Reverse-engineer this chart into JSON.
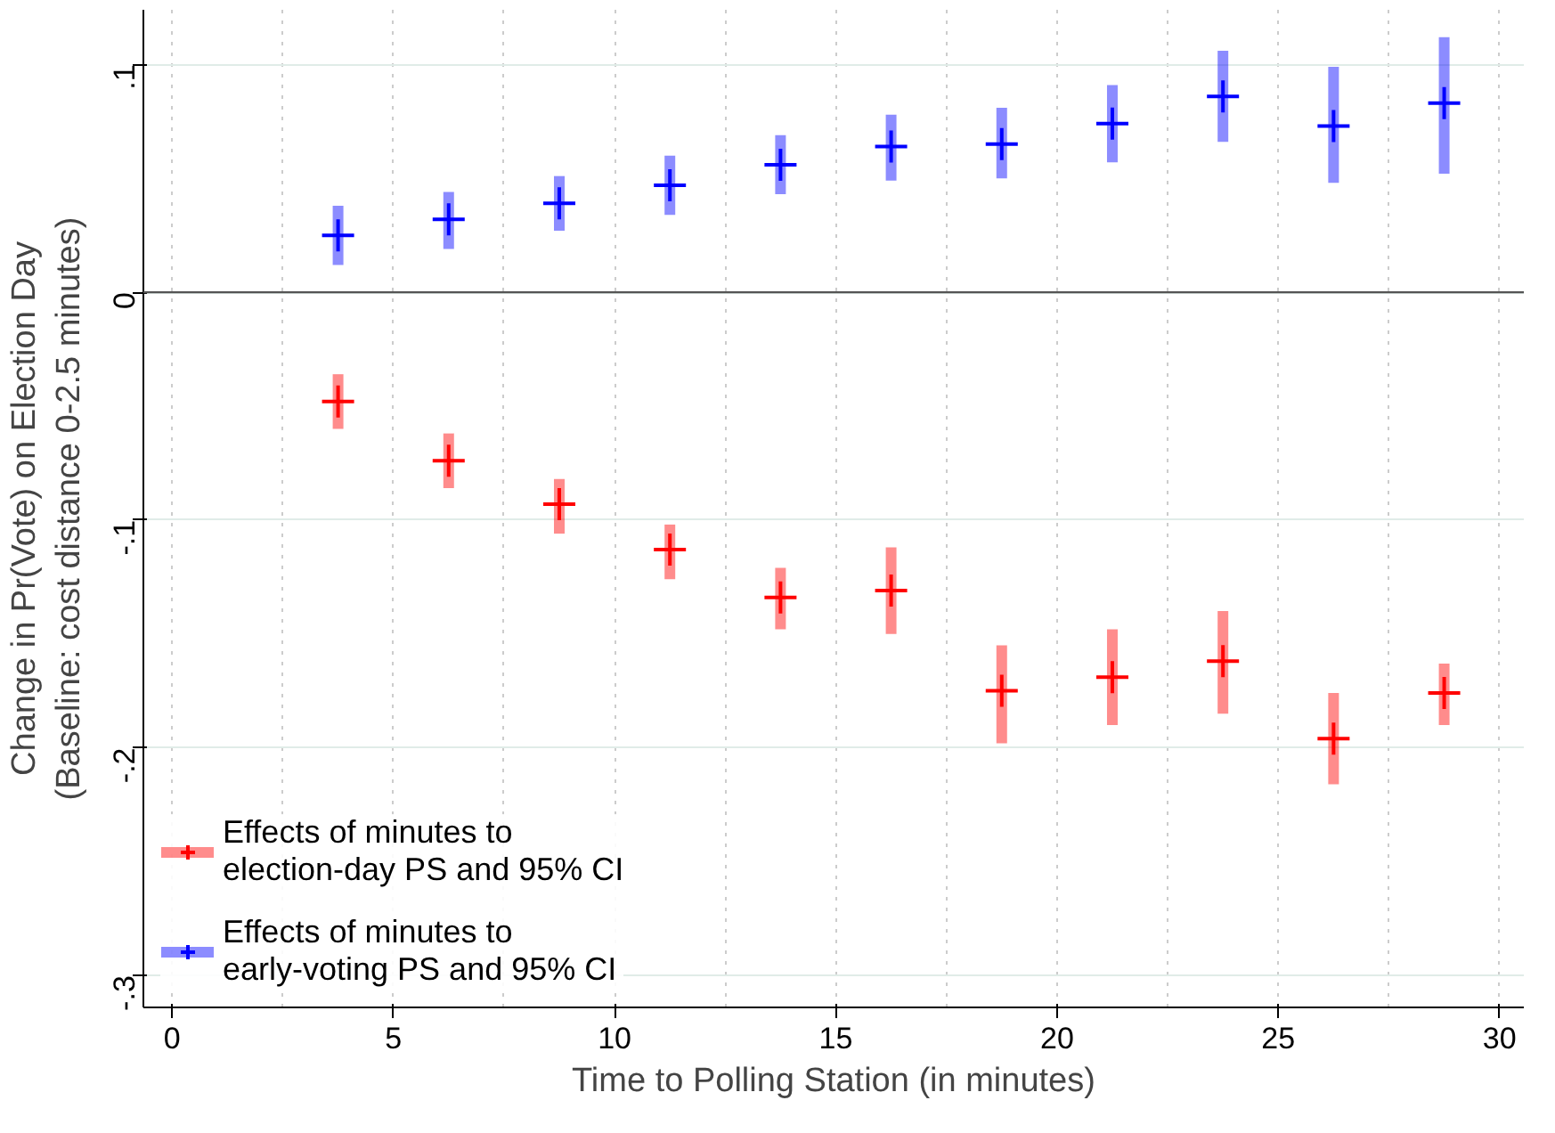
{
  "chart_data": {
    "type": "scatter",
    "xlabel": "Time to Polling Station (in minutes)",
    "ylabel": "Change in Pr(Vote) on Election Day\n(Baseline: cost distance 0-2.5 minutes)",
    "x": [
      3.75,
      6.25,
      8.75,
      11.25,
      13.75,
      16.25,
      18.75,
      21.25,
      23.75,
      26.25,
      28.75
    ],
    "series": [
      {
        "name": "Effects of minutes to\nelection-day PS and 95% CI",
        "color": "#ff0000",
        "values": [
          -0.048,
          -0.074,
          -0.093,
          -0.113,
          -0.134,
          -0.131,
          -0.175,
          -0.169,
          -0.162,
          -0.196,
          -0.176
        ],
        "errors": [
          [
            -0.06,
            -0.036
          ],
          [
            -0.086,
            -0.062
          ],
          [
            -0.106,
            -0.082
          ],
          [
            -0.126,
            -0.102
          ],
          [
            -0.148,
            -0.121
          ],
          [
            -0.15,
            -0.112
          ],
          [
            -0.198,
            -0.155
          ],
          [
            -0.19,
            -0.148
          ],
          [
            -0.185,
            -0.14
          ],
          [
            -0.216,
            -0.176
          ],
          [
            -0.19,
            -0.163
          ]
        ]
      },
      {
        "name": "Effects of minutes to\nearly-voting PS and 95% CI",
        "color": "#0000ff",
        "values": [
          0.025,
          0.032,
          0.039,
          0.047,
          0.056,
          0.064,
          0.065,
          0.074,
          0.086,
          0.073,
          0.083
        ],
        "errors": [
          [
            0.012,
            0.038
          ],
          [
            0.019,
            0.044
          ],
          [
            0.027,
            0.051
          ],
          [
            0.034,
            0.06
          ],
          [
            0.043,
            0.069
          ],
          [
            0.049,
            0.078
          ],
          [
            0.05,
            0.081
          ],
          [
            0.057,
            0.091
          ],
          [
            0.066,
            0.106
          ],
          [
            0.048,
            0.099
          ],
          [
            0.052,
            0.112
          ]
        ]
      }
    ],
    "xlim": [
      -0.65,
      30.55
    ],
    "ylim": [
      -0.314,
      0.124
    ],
    "xticks": [
      0,
      5,
      10,
      15,
      20,
      25,
      30
    ],
    "yticks": [
      {
        "value": 0.1,
        "label": ".1"
      },
      {
        "value": 0,
        "label": "0"
      },
      {
        "value": -0.1,
        "label": "-.1"
      },
      {
        "value": -0.2,
        "label": "-.2"
      },
      {
        "value": -0.3,
        "label": "-.3"
      }
    ],
    "ref_lines": [
      {
        "axis": "y",
        "value": 0,
        "label": null,
        "color": "#555555"
      }
    ],
    "grid": true,
    "legend": "bottom left",
    "marker": "cross"
  }
}
